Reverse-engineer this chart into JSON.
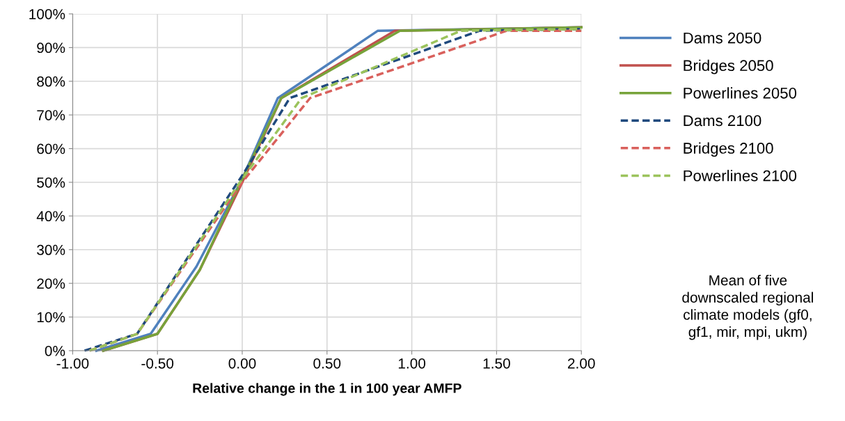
{
  "chart_data": {
    "type": "line",
    "xlabel": "Relative change in the 1 in 100 year AMFP",
    "series": [
      {
        "name": "Dams 2050",
        "color": "#4f81bd",
        "line_style": "solid",
        "x": [
          -0.86,
          -0.54,
          -0.27,
          0.0,
          0.21,
          0.8,
          2.0
        ],
        "values": [
          0,
          5,
          25,
          51,
          75,
          95,
          96
        ]
      },
      {
        "name": "Bridges 2050",
        "color": "#c0504d",
        "line_style": "solid",
        "x": [
          -0.82,
          -0.5,
          -0.25,
          0.0,
          0.23,
          0.9,
          2.0
        ],
        "values": [
          0,
          5,
          24,
          50,
          75,
          95,
          96
        ]
      },
      {
        "name": "Powerlines 2050",
        "color": "#77a33a",
        "line_style": "solid",
        "x": [
          -0.82,
          -0.5,
          -0.25,
          0.0,
          0.23,
          0.93,
          2.0
        ],
        "values": [
          0,
          5,
          24,
          51,
          75,
          95,
          96
        ]
      },
      {
        "name": "Dams 2100",
        "color": "#1f497d",
        "line_style": "dashed",
        "x": [
          -0.93,
          -0.62,
          0.0,
          0.28,
          1.4,
          2.0
        ],
        "values": [
          0,
          5,
          52,
          75,
          95,
          95.5
        ]
      },
      {
        "name": "Bridges 2100",
        "color": "#d9605c",
        "line_style": "dashed",
        "x": [
          -0.9,
          -0.62,
          0.0,
          0.4,
          1.56,
          2.0
        ],
        "values": [
          0,
          5,
          50,
          75,
          95,
          95
        ]
      },
      {
        "name": "Powerlines 2100",
        "color": "#9bc35c",
        "line_style": "dashed",
        "x": [
          -0.9,
          -0.62,
          0.0,
          0.35,
          1.29,
          2.0
        ],
        "values": [
          0,
          5,
          51,
          75,
          95,
          95.5
        ]
      }
    ],
    "xlim": [
      -1.0,
      2.0
    ],
    "xticks": [
      {
        "value": -1.0,
        "label": "-1.00"
      },
      {
        "value": -0.5,
        "label": "-0.50"
      },
      {
        "value": 0.0,
        "label": "0.00"
      },
      {
        "value": 0.5,
        "label": "0.50"
      },
      {
        "value": 1.0,
        "label": "1.00"
      },
      {
        "value": 1.5,
        "label": "1.50"
      },
      {
        "value": 2.0,
        "label": "2.00"
      }
    ],
    "ylim": [
      0,
      100
    ],
    "yticks": [
      {
        "value": 0,
        "label": "0%"
      },
      {
        "value": 10,
        "label": "10%"
      },
      {
        "value": 20,
        "label": "20%"
      },
      {
        "value": 30,
        "label": "30%"
      },
      {
        "value": 40,
        "label": "40%"
      },
      {
        "value": 50,
        "label": "50%"
      },
      {
        "value": 60,
        "label": "60%"
      },
      {
        "value": 70,
        "label": "70%"
      },
      {
        "value": 80,
        "label": "80%"
      },
      {
        "value": 90,
        "label": "90%"
      },
      {
        "value": 100,
        "label": "100%"
      }
    ],
    "grid": true,
    "legend": "right",
    "marker": "none",
    "annotations": [
      "Mean of five downscaled regional climate models (gf0, gf1, mir, mpi, ukm)"
    ]
  }
}
